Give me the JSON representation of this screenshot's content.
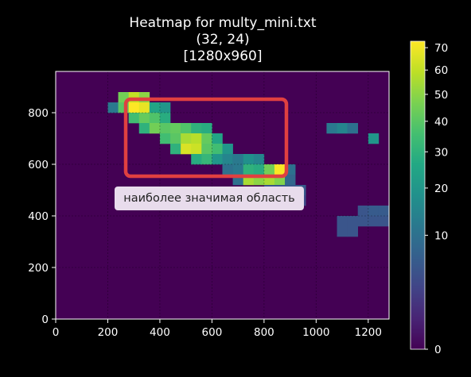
{
  "chart_data": {
    "type": "heatmap",
    "title": [
      "Heatmap for multy_mini.txt",
      "(32, 24)",
      "[1280x960]"
    ],
    "grid": {
      "cols": 32,
      "rows": 24
    },
    "xlim": [
      0,
      1280
    ],
    "ylim": [
      0,
      960
    ],
    "xticks": [
      0,
      200,
      400,
      600,
      800,
      1000,
      1200
    ],
    "yticks": [
      0,
      200,
      400,
      600,
      800
    ],
    "colorbar": {
      "colormap": "viridis",
      "range": [
        0,
        73
      ],
      "scale": "sqrt",
      "ticks": [
        0,
        10,
        20,
        30,
        40,
        50,
        60,
        70
      ]
    },
    "background_value": 0,
    "cells_note": "[x, y, value] where x,y are cell lower-left corners in pixel units (cell size 40x40)",
    "cells": [
      [
        200,
        800,
        12
      ],
      [
        240,
        840,
        45
      ],
      [
        280,
        840,
        60
      ],
      [
        320,
        840,
        50
      ],
      [
        240,
        800,
        40
      ],
      [
        280,
        800,
        73
      ],
      [
        320,
        800,
        68
      ],
      [
        360,
        800,
        25
      ],
      [
        400,
        800,
        20
      ],
      [
        280,
        760,
        35
      ],
      [
        320,
        760,
        42
      ],
      [
        360,
        760,
        38
      ],
      [
        400,
        760,
        28
      ],
      [
        320,
        720,
        30
      ],
      [
        360,
        720,
        45
      ],
      [
        400,
        720,
        40
      ],
      [
        440,
        720,
        42
      ],
      [
        480,
        720,
        38
      ],
      [
        520,
        720,
        30
      ],
      [
        560,
        720,
        28
      ],
      [
        400,
        680,
        35
      ],
      [
        440,
        680,
        40
      ],
      [
        480,
        680,
        55
      ],
      [
        520,
        680,
        58
      ],
      [
        560,
        680,
        42
      ],
      [
        600,
        680,
        25
      ],
      [
        440,
        640,
        30
      ],
      [
        480,
        640,
        65
      ],
      [
        520,
        640,
        62
      ],
      [
        560,
        640,
        40
      ],
      [
        600,
        640,
        35
      ],
      [
        640,
        640,
        20
      ],
      [
        520,
        600,
        28
      ],
      [
        560,
        600,
        32
      ],
      [
        600,
        600,
        20
      ],
      [
        640,
        600,
        15
      ],
      [
        680,
        600,
        12
      ],
      [
        720,
        600,
        18
      ],
      [
        760,
        600,
        15
      ],
      [
        640,
        560,
        10
      ],
      [
        680,
        560,
        12
      ],
      [
        720,
        560,
        30
      ],
      [
        760,
        560,
        28
      ],
      [
        800,
        560,
        45
      ],
      [
        840,
        560,
        72
      ],
      [
        880,
        560,
        10
      ],
      [
        680,
        520,
        10
      ],
      [
        720,
        520,
        55
      ],
      [
        760,
        520,
        50
      ],
      [
        800,
        520,
        55
      ],
      [
        840,
        520,
        48
      ],
      [
        880,
        520,
        8
      ],
      [
        800,
        480,
        5
      ],
      [
        840,
        480,
        5
      ],
      [
        880,
        480,
        6
      ],
      [
        920,
        480,
        6
      ],
      [
        840,
        440,
        5
      ],
      [
        880,
        440,
        4
      ],
      [
        920,
        440,
        4
      ],
      [
        1040,
        720,
        12
      ],
      [
        1080,
        720,
        15
      ],
      [
        1120,
        720,
        10
      ],
      [
        1200,
        680,
        20
      ],
      [
        1160,
        400,
        5
      ],
      [
        1200,
        400,
        6
      ],
      [
        1240,
        400,
        6
      ],
      [
        1080,
        360,
        5
      ],
      [
        1120,
        360,
        5
      ],
      [
        1160,
        360,
        5
      ],
      [
        1200,
        360,
        5
      ],
      [
        1240,
        360,
        5
      ],
      [
        1080,
        320,
        5
      ],
      [
        1120,
        320,
        5
      ]
    ],
    "annotation": "наиболее значимая область"
  }
}
